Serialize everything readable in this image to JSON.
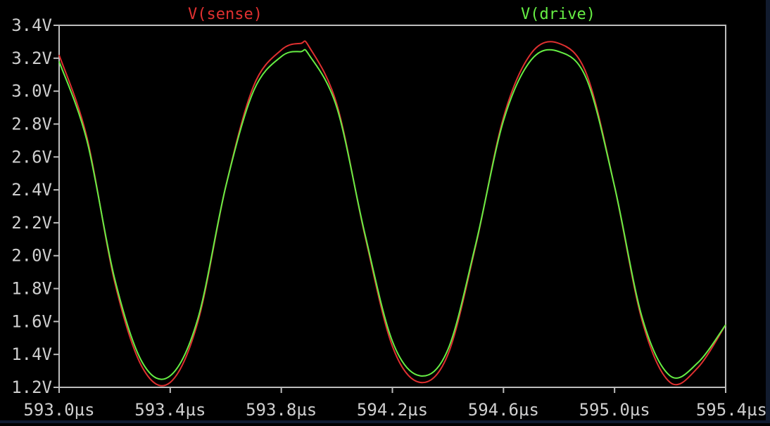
{
  "chart_data": {
    "type": "line",
    "background": "#000000",
    "frame_color": "#bdbdbd",
    "xlim": [
      593.0,
      595.4
    ],
    "ylim": [
      1.2,
      3.4
    ],
    "x_ticks": [
      "593.0µs",
      "593.4µs",
      "593.8µs",
      "594.2µs",
      "594.6µs",
      "595.0µs",
      "595.4µs"
    ],
    "x_tick_values": [
      593.0,
      593.4,
      593.8,
      594.2,
      594.6,
      595.0,
      595.4
    ],
    "y_ticks": [
      "3.4V",
      "3.2V",
      "3.0V",
      "2.8V",
      "2.6V",
      "2.4V",
      "2.2V",
      "2.0V",
      "1.8V",
      "1.6V",
      "1.4V",
      "1.2V"
    ],
    "y_tick_values": [
      3.4,
      3.2,
      3.0,
      2.8,
      2.6,
      2.4,
      2.2,
      2.0,
      1.8,
      1.6,
      1.4,
      1.2
    ],
    "grid": false,
    "legend_placement": "top",
    "series": [
      {
        "name": "V(sense)",
        "color": "#e03030",
        "x": [
          593.0,
          593.1,
          593.2,
          593.3,
          593.4,
          593.5,
          593.6,
          593.7,
          593.8,
          593.87,
          593.9,
          594.0,
          594.1,
          594.2,
          594.3,
          594.4,
          594.5,
          594.6,
          594.7,
          594.8,
          594.9,
          595.0,
          595.1,
          595.2,
          595.3,
          595.4
        ],
        "y": [
          3.22,
          2.72,
          1.84,
          1.32,
          1.23,
          1.6,
          2.42,
          3.03,
          3.25,
          3.29,
          3.27,
          2.92,
          2.13,
          1.45,
          1.23,
          1.4,
          2.06,
          2.84,
          3.23,
          3.29,
          3.1,
          2.42,
          1.6,
          1.23,
          1.32,
          1.58
        ]
      },
      {
        "name": "V(drive)",
        "color": "#66ee44",
        "x": [
          593.0,
          593.1,
          593.2,
          593.3,
          593.4,
          593.5,
          593.6,
          593.7,
          593.8,
          593.87,
          593.9,
          594.0,
          594.1,
          594.2,
          594.3,
          594.4,
          594.5,
          594.6,
          594.7,
          594.8,
          594.9,
          595.0,
          595.1,
          595.2,
          595.3,
          595.4
        ],
        "y": [
          3.18,
          2.7,
          1.86,
          1.35,
          1.27,
          1.62,
          2.42,
          3.0,
          3.21,
          3.24,
          3.22,
          2.9,
          2.14,
          1.48,
          1.27,
          1.43,
          2.07,
          2.82,
          3.19,
          3.24,
          3.07,
          2.42,
          1.62,
          1.27,
          1.35,
          1.58
        ]
      }
    ]
  }
}
